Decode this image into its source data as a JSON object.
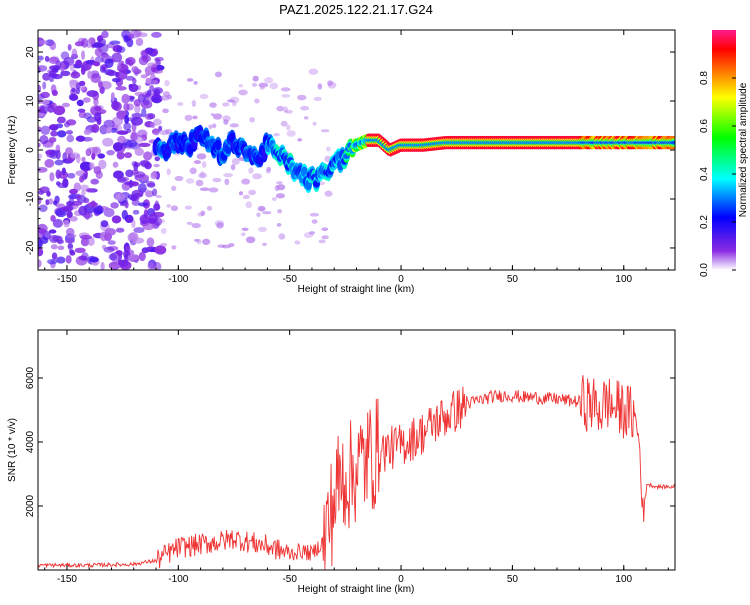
{
  "figure": {
    "title": "PAZ1.2025.122.21.17.G24"
  },
  "chart_data": [
    {
      "type": "heatmap",
      "title": "PAZ1.2025.122.21.17.G24",
      "xlabel": "Height of straight line (km)",
      "ylabel": "Frequency (Hz)",
      "xlim": [
        -163,
        123
      ],
      "ylim": [
        -24.5,
        24.5
      ],
      "xticks": [
        -150,
        -100,
        -50,
        0,
        50,
        100
      ],
      "yticks": [
        -20,
        -10,
        0,
        10,
        20
      ],
      "colorbar": {
        "label": "Normalized spectral amplitude",
        "range": [
          0,
          1
        ],
        "ticks": [
          0.0,
          0.2,
          0.4,
          0.6,
          0.8
        ],
        "colormap": [
          "#ffffff",
          "#8a2be2",
          "#0000ff",
          "#00ffff",
          "#00ff00",
          "#ffff00",
          "#ff8000",
          "#ff0000",
          "#ff00ff"
        ]
      },
      "ridge": {
        "x": [
          -110,
          -105,
          -100,
          -95,
          -90,
          -85,
          -80,
          -75,
          -70,
          -65,
          -60,
          -55,
          -50,
          -45,
          -42,
          -38,
          -35,
          -30,
          -25,
          -20,
          -15,
          -10,
          -5,
          0,
          5,
          10,
          20,
          30,
          40,
          50,
          60,
          70,
          80,
          85,
          90,
          95,
          100,
          105,
          110,
          115,
          122
        ],
        "y": [
          1,
          0,
          2,
          1,
          3,
          1,
          -1,
          2,
          0,
          -2,
          1,
          -1,
          -3,
          -5,
          -6,
          -6,
          -5,
          -3,
          -1,
          1,
          2,
          2,
          0,
          1,
          1,
          1,
          1.5,
          1.5,
          1.5,
          1.5,
          1.5,
          1.5,
          1.5,
          1.5,
          1.5,
          1.5,
          1.5,
          1.5,
          1.5,
          1.5,
          1.5
        ]
      },
      "ridge_peak": {
        "x": [
          -15,
          60
        ],
        "amplitude": 1.0
      }
    },
    {
      "type": "line",
      "xlabel": "Height of straight line (km)",
      "ylabel": "SNR (10 * v/v)",
      "xlim": [
        -163,
        123
      ],
      "ylim": [
        0,
        7500
      ],
      "xticks": [
        -150,
        -100,
        -50,
        0,
        50,
        100
      ],
      "yticks": [
        2000,
        4000,
        6000
      ],
      "color": "#ee3333",
      "x": [
        -163,
        -140,
        -120,
        -110,
        -100,
        -90,
        -80,
        -75,
        -70,
        -60,
        -50,
        -45,
        -40,
        -35,
        -32,
        -30,
        -28,
        -25,
        -22,
        -20,
        -18,
        -15,
        -12,
        -10,
        -5,
        0,
        5,
        10,
        15,
        20,
        25,
        30,
        35,
        40,
        45,
        50,
        55,
        60,
        65,
        70,
        75,
        80,
        85,
        88,
        90,
        92,
        95,
        100,
        105,
        107,
        108,
        109,
        110,
        112,
        115,
        123
      ],
      "y": [
        150,
        150,
        180,
        300,
        700,
        800,
        900,
        1000,
        900,
        750,
        500,
        600,
        500,
        900,
        1600,
        2200,
        2700,
        3000,
        2900,
        3300,
        3300,
        3500,
        3600,
        3700,
        3800,
        3900,
        4100,
        4300,
        4600,
        4800,
        5000,
        5200,
        5300,
        5400,
        5450,
        5450,
        5400,
        5400,
        5350,
        5350,
        5300,
        5250,
        5200,
        5100,
        5000,
        5300,
        5100,
        5000,
        4800,
        4000,
        2500,
        1500,
        2700,
        2650,
        2600,
        2600
      ]
    }
  ]
}
